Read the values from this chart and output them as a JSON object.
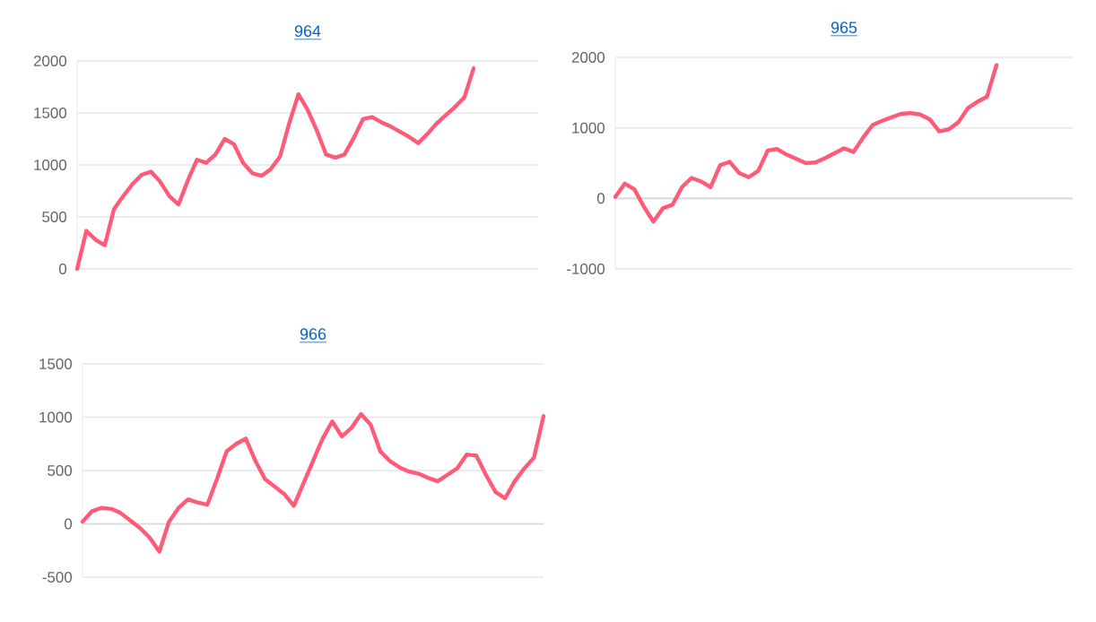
{
  "chart_data": [
    {
      "type": "line",
      "title": "964",
      "categories": [
        null,
        null,
        null,
        null,
        null,
        null,
        null,
        null,
        null,
        null,
        null,
        null,
        null,
        null,
        null,
        null,
        null,
        null,
        null,
        null,
        null,
        null,
        null,
        null,
        null,
        null,
        null,
        null,
        null,
        null,
        null,
        null,
        null,
        null,
        null,
        null,
        null,
        null,
        null,
        null,
        null,
        null,
        null,
        null,
        null,
        null,
        null,
        null,
        null,
        null,
        null
      ],
      "series": [
        {
          "color": "#ff5a78",
          "values": [
            0,
            366,
            280,
            228,
            575,
            700,
            815,
            905,
            935,
            840,
            700,
            620,
            850,
            1050,
            1020,
            1100,
            1250,
            1200,
            1020,
            920,
            895,
            960,
            1080,
            1400,
            1680,
            1530,
            1330,
            1100,
            1070,
            1100,
            1260,
            1440,
            1460,
            1410,
            1370,
            1320,
            1270,
            1210,
            1300,
            1400,
            1480,
            1560,
            1650,
            1930,
            null,
            null,
            null,
            null,
            null,
            null,
            null
          ]
        }
      ],
      "ylim": [
        0,
        2000
      ],
      "yticks": [
        0,
        500,
        1000,
        1500,
        2000
      ],
      "grid": "y",
      "tick_labels": "y"
    },
    {
      "type": "line",
      "title": "965",
      "categories": [
        null,
        null,
        null,
        null,
        null,
        null,
        null,
        null,
        null,
        null,
        null,
        null,
        null,
        null,
        null,
        null,
        null,
        null,
        null,
        null,
        null,
        null,
        null,
        null,
        null,
        null,
        null,
        null,
        null,
        null,
        null,
        null,
        null,
        null,
        null,
        null,
        null,
        null,
        null,
        null,
        null,
        null,
        null,
        null,
        null,
        null,
        null,
        null,
        null
      ],
      "series": [
        {
          "color": "#ff5a78",
          "values": [
            20,
            210,
            130,
            -120,
            -330,
            -140,
            -90,
            160,
            290,
            240,
            160,
            470,
            520,
            360,
            300,
            390,
            680,
            700,
            620,
            560,
            500,
            510,
            570,
            640,
            710,
            660,
            860,
            1040,
            1100,
            1150,
            1200,
            1210,
            1190,
            1120,
            950,
            980,
            1080,
            1280,
            1370,
            1440,
            1890,
            null,
            null,
            null,
            null,
            null,
            null,
            null,
            null
          ]
        }
      ],
      "ylim": [
        -1000,
        2000
      ],
      "yticks": [
        -1000,
        0,
        1000,
        2000
      ],
      "grid": "y",
      "tick_labels": "y"
    },
    {
      "type": "line",
      "title": "966",
      "categories": [
        null,
        null,
        null,
        null,
        null,
        null,
        null,
        null,
        null,
        null,
        null,
        null,
        null,
        null,
        null,
        null,
        null,
        null,
        null,
        null,
        null,
        null,
        null,
        null,
        null,
        null,
        null,
        null,
        null,
        null,
        null,
        null,
        null,
        null,
        null,
        null,
        null,
        null,
        null,
        null,
        null,
        null,
        null,
        null,
        null,
        null,
        null,
        null,
        null
      ],
      "series": [
        {
          "color": "#ff5a78",
          "values": [
            20,
            120,
            150,
            140,
            100,
            30,
            -40,
            -130,
            -260,
            20,
            150,
            230,
            200,
            180,
            420,
            680,
            750,
            800,
            590,
            420,
            350,
            280,
            170,
            380,
            590,
            800,
            960,
            820,
            900,
            1030,
            930,
            680,
            590,
            530,
            490,
            470,
            430,
            400,
            460,
            520,
            650,
            640,
            460,
            300,
            240,
            400,
            520,
            620,
            1010
          ]
        }
      ],
      "ylim": [
        -500,
        1500
      ],
      "yticks": [
        -500,
        0,
        500,
        1000,
        1500
      ],
      "grid": "y",
      "tick_labels": "y"
    }
  ]
}
